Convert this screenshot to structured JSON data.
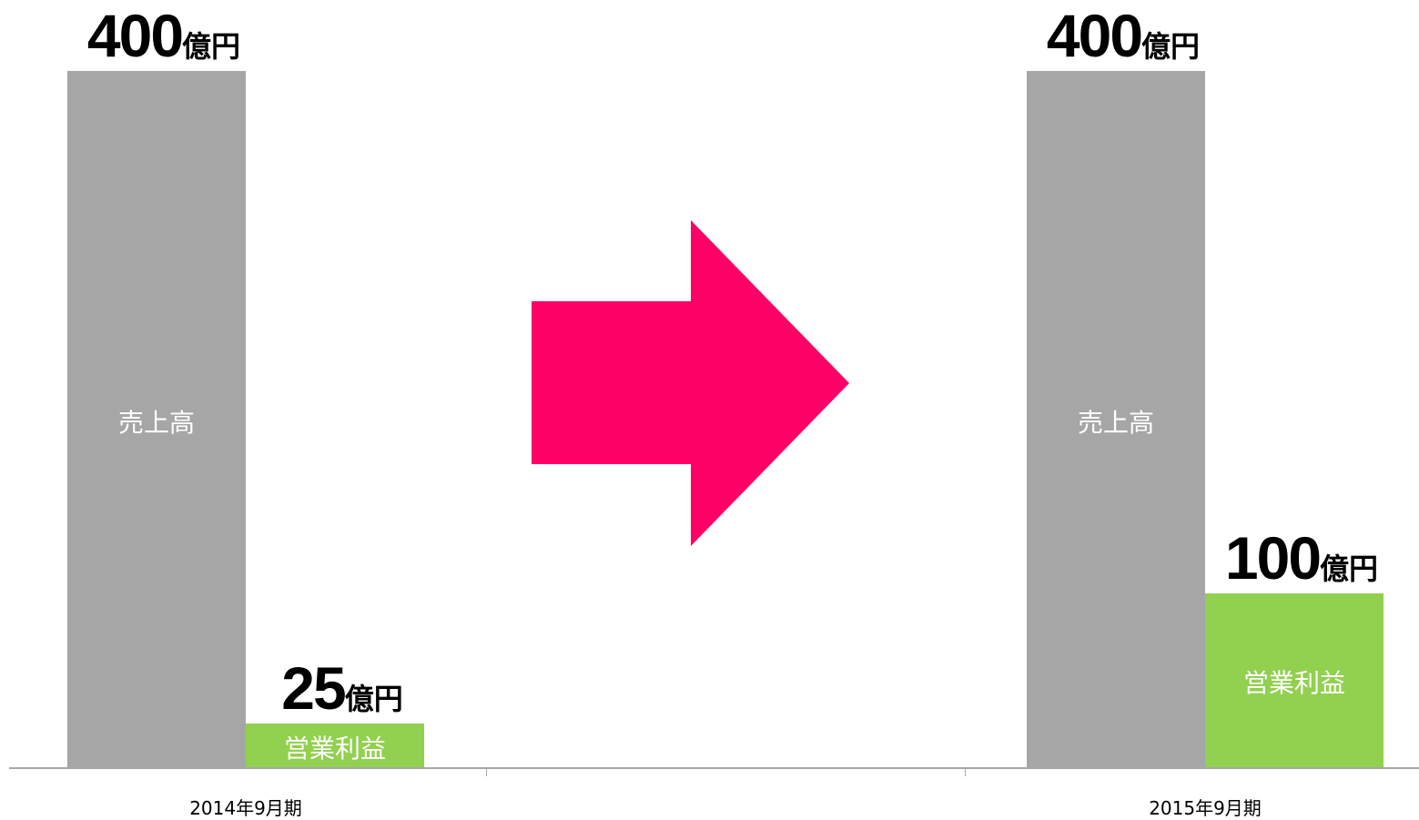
{
  "chart_data": {
    "type": "bar",
    "categories": [
      "2014年9月期",
      "2015年9月期"
    ],
    "series": [
      {
        "name": "売上高",
        "values": [
          400,
          400
        ],
        "color": "#a6a6a6"
      },
      {
        "name": "営業利益",
        "values": [
          25,
          100
        ],
        "color": "#92d050"
      }
    ],
    "value_unit": "億円",
    "data_labels": [
      {
        "series": 0,
        "category": 0,
        "value": "400",
        "unit": "億円"
      },
      {
        "series": 1,
        "category": 0,
        "value": "25",
        "unit": "億円"
      },
      {
        "series": 0,
        "category": 1,
        "value": "400",
        "unit": "億円"
      },
      {
        "series": 1,
        "category": 1,
        "value": "100",
        "unit": "億円"
      }
    ],
    "ylim": [
      0,
      400
    ],
    "grid": false,
    "legend": "none",
    "title": "",
    "xlabel": "",
    "ylabel": ""
  },
  "arrow": {
    "icon": "right-arrow-icon",
    "color": "#ff0066"
  },
  "axis_color": "#a6a6a6"
}
